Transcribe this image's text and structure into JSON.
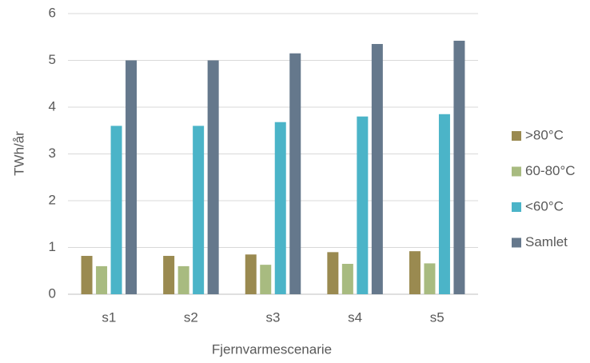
{
  "chart_data": {
    "type": "bar",
    "xlabel": "Fjernvarmescenarie",
    "ylabel": "TWh/år",
    "categories": [
      "s1",
      "s2",
      "s3",
      "s4",
      "s5"
    ],
    "series": [
      {
        "name": ">80°C",
        "color": "#9a8a50",
        "values": [
          0.82,
          0.82,
          0.85,
          0.9,
          0.92
        ]
      },
      {
        "name": "60-80°C",
        "color": "#a8bb80",
        "values": [
          0.6,
          0.6,
          0.63,
          0.65,
          0.66
        ]
      },
      {
        "name": "<60°C",
        "color": "#4bb4c8",
        "values": [
          3.6,
          3.6,
          3.68,
          3.8,
          3.85
        ]
      },
      {
        "name": "Samlet",
        "color": "#65788c",
        "values": [
          5.0,
          5.0,
          5.15,
          5.35,
          5.42
        ]
      }
    ],
    "ylim": [
      0,
      6
    ],
    "yticks": [
      0,
      1,
      2,
      3,
      4,
      5,
      6
    ],
    "grid": true,
    "legend": "right"
  }
}
